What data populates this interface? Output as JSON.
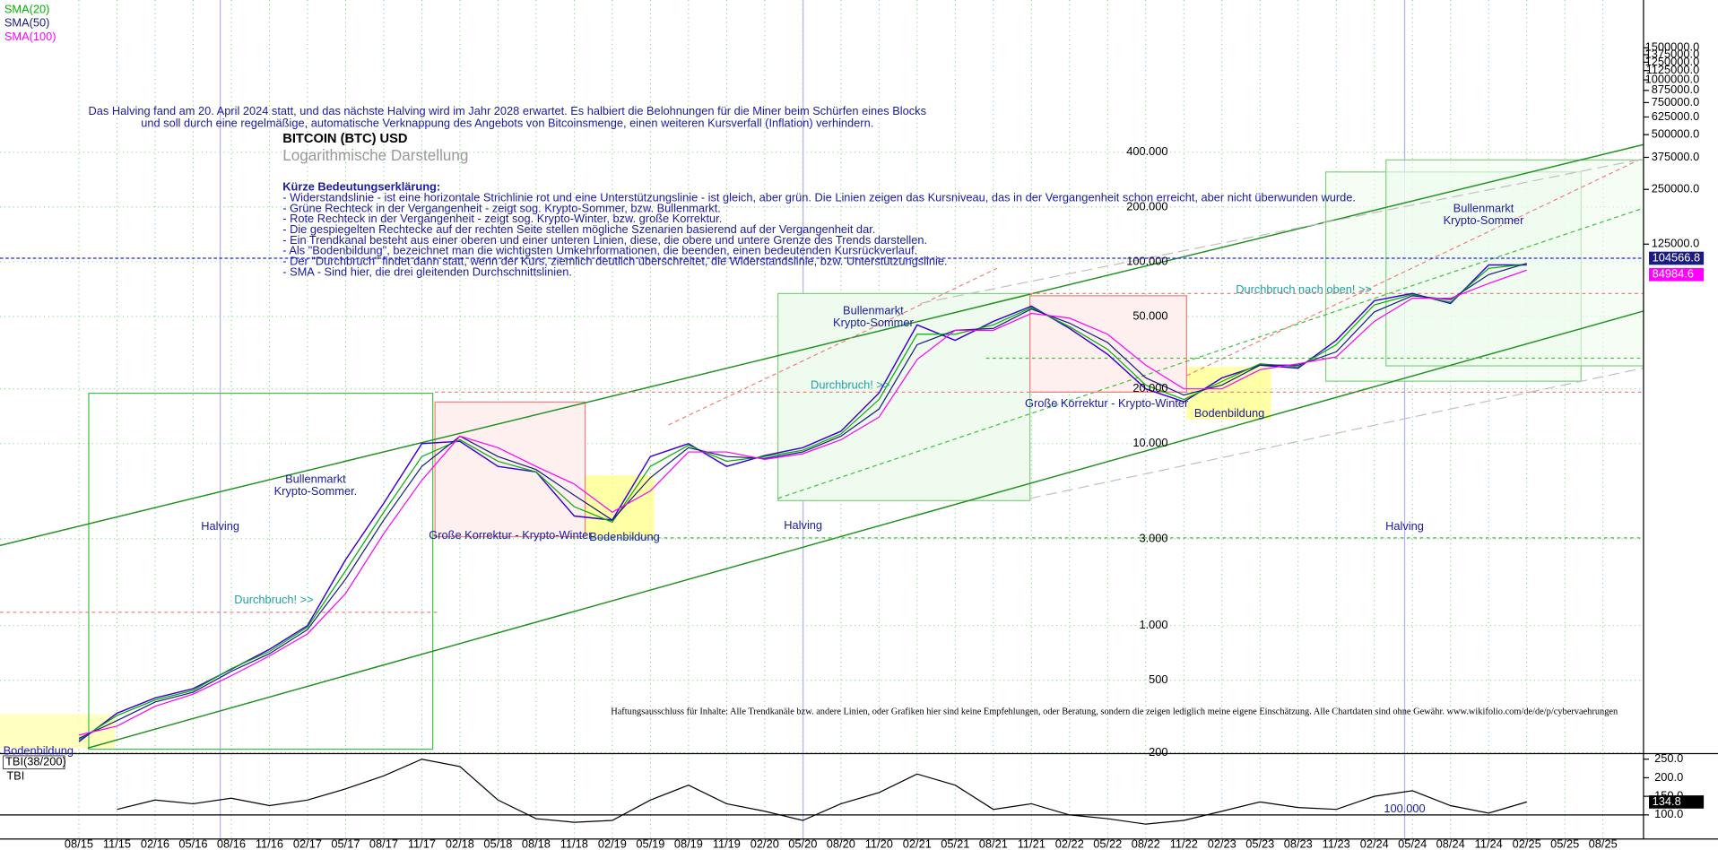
{
  "chart_data": [
    {
      "type": "line",
      "title": "BITCOIN (BTC) USD",
      "subtitle": "Logarithmische Darstellung",
      "log_scale": true,
      "grid": true,
      "x": [
        "08/15",
        "11/15",
        "02/16",
        "05/16",
        "08/16",
        "11/16",
        "02/17",
        "05/17",
        "08/17",
        "11/17",
        "02/18",
        "05/18",
        "08/18",
        "11/18",
        "02/19",
        "05/19",
        "08/19",
        "11/19",
        "02/20",
        "05/20",
        "08/20",
        "11/20",
        "02/21",
        "05/21",
        "08/21",
        "11/21",
        "02/22",
        "05/22",
        "08/22",
        "11/22",
        "02/23",
        "05/23",
        "08/23",
        "11/23",
        "02/24",
        "05/24",
        "08/24",
        "11/24",
        "02/25",
        "05/25",
        "08/25"
      ],
      "ylim": [
        195,
        2600000
      ],
      "yticks": [
        {
          "value": 200,
          "label": "200"
        },
        {
          "value": 500,
          "label": "500"
        },
        {
          "value": 1000,
          "label": "1.000"
        },
        {
          "value": 3000,
          "label": "3.000"
        },
        {
          "value": 10000,
          "label": "10.000"
        },
        {
          "value": 20000,
          "label": "20.000"
        },
        {
          "value": 50000,
          "label": "50.000"
        },
        {
          "value": 100000,
          "label": "100.000"
        },
        {
          "value": 200000,
          "label": "200.000"
        },
        {
          "value": 400000,
          "label": "400.000"
        }
      ],
      "y2lim": [
        195,
        2600000
      ],
      "y2ticks": [
        {
          "value": 125000,
          "label": "125000.0"
        },
        {
          "value": 250000,
          "label": "250000.0"
        },
        {
          "value": 375000,
          "label": "375000.0"
        },
        {
          "value": 500000,
          "label": "500000.0"
        },
        {
          "value": 625000,
          "label": "625000.0"
        },
        {
          "value": 750000,
          "label": "750000.0"
        },
        {
          "value": 875000,
          "label": "875000.0"
        },
        {
          "value": 1000000,
          "label": "1000000.0"
        },
        {
          "value": 1125000,
          "label": "1125000.0"
        },
        {
          "value": 1250000,
          "label": "1250000.0"
        },
        {
          "value": 1375000,
          "label": "1375000.0"
        },
        {
          "value": 1500000,
          "label": "1500000.0"
        }
      ],
      "series": [
        {
          "color": "#3a00d8",
          "values": [
            230,
            330,
            400,
            450,
            575,
            740,
            1000,
            2300,
            4700,
            10000,
            10300,
            7500,
            7000,
            4000,
            3800,
            8500,
            10000,
            7500,
            8600,
            9500,
            11700,
            19000,
            45000,
            37000,
            47000,
            57000,
            43000,
            31000,
            20000,
            17000,
            23000,
            27000,
            26000,
            37000,
            61000,
            67000,
            59000,
            96000,
            96000,
            null,
            null
          ]
        },
        {
          "name": "SMA(20)",
          "color": "#00b000",
          "values": [
            235,
            320,
            390,
            440,
            580,
            720,
            980,
            2000,
            4200,
            8500,
            10500,
            8000,
            7000,
            4500,
            3700,
            7500,
            9800,
            8000,
            8500,
            9200,
            11300,
            17500,
            40000,
            40000,
            45000,
            56000,
            44000,
            33000,
            21000,
            17500,
            22000,
            27500,
            26500,
            35000,
            58000,
            66000,
            60000,
            92000,
            97000,
            null,
            null
          ]
        },
        {
          "name": "SMA(50)",
          "color": "#1a1a80",
          "values": [
            240,
            300,
            380,
            430,
            560,
            700,
            950,
            1800,
            3800,
            7500,
            11000,
            8500,
            7200,
            5200,
            3800,
            6500,
            9500,
            8500,
            8300,
            9000,
            11000,
            15500,
            35000,
            42000,
            43000,
            55000,
            46000,
            36000,
            23000,
            18500,
            21000,
            27000,
            27000,
            32000,
            53000,
            65000,
            62000,
            85000,
            98000,
            null,
            null
          ]
        },
        {
          "name": "SMA(100)",
          "color": "#ff00ff",
          "values": [
            250,
            280,
            360,
            420,
            530,
            680,
            900,
            1500,
            3200,
            6300,
            11000,
            9500,
            7500,
            6000,
            4200,
            5500,
            9000,
            9000,
            8200,
            8800,
            10500,
            14000,
            29000,
            42000,
            42000,
            52000,
            49000,
            40000,
            27000,
            20000,
            20000,
            25500,
            27500,
            30000,
            47000,
            63000,
            63000,
            76000,
            90000,
            null,
            null
          ]
        }
      ],
      "last_price": 104566.8,
      "last_sma": 84984.6
    },
    {
      "type": "line",
      "title": "TBI(38/200)",
      "ylim": [
        38,
        259
      ],
      "yticks": [
        {
          "value": 250,
          "label": "250.0"
        },
        {
          "value": 200,
          "label": "200.0"
        },
        {
          "value": 150,
          "label": "150.0"
        },
        {
          "value": 100,
          "label": "100.0"
        }
      ],
      "series": [
        {
          "name": "TBI",
          "color": "#000000",
          "values": [
            null,
            115,
            140,
            130,
            145,
            125,
            140,
            170,
            205,
            250,
            230,
            140,
            90,
            80,
            85,
            140,
            180,
            130,
            110,
            85,
            130,
            160,
            210,
            180,
            115,
            130,
            100,
            90,
            75,
            85,
            110,
            135,
            120,
            115,
            150,
            165,
            125,
            105,
            135,
            null,
            null
          ]
        }
      ],
      "last_value": 134.8,
      "panel_label": "100.000"
    }
  ],
  "annotations": {
    "halving_note": [
      "Das Halving fand am 20. April 2024 statt, und das nächste Halving wird im Jahr 2028 erwartet. Es halbiert die Belohnungen für die Miner beim Schürfen eines Blocks",
      "und soll durch eine regelmäßige, automatische Verknappung des Angebots von Bitcoinsmenge, einen weiteren Kursverfall (Inflation) verhindern."
    ],
    "legend_heading": "Kürze Bedeutungserklärung:",
    "legend_lines": [
      "- Widerstandslinie - ist eine horizontale Strichlinie rot und eine Unterstützungslinie - ist gleich, aber grün. Die Linien zeigen das Kursniveau, das in der Vergangenheit schon erreicht, aber nicht überwunden wurde.",
      "- Grüne Rechteck in der Vergangenheit - zeigt sog. Krypto-Sommer, bzw. Bullenmarkt.",
      "- Rote Rechteck in der Vergangenheit - zeigt sog. Krypto-Winter, bzw. große Korrektur.",
      "- Die gespiegelten Rechtecke auf der rechten Seite stellen mögliche Szenarien basierend auf der Vergangenheit dar.",
      "- Ein Trendkanal besteht aus einer oberen und einer unteren Linien, diese, die obere und untere Grenze des Trends darstellen.",
      "- Als \"Bodenbildung\", bezeichnet man die wichtigsten Umkehrformationen, die beenden, einen bedeutenden Kursrückverlauf.",
      "- Der \"Durchbruch\" findet dann statt, wenn der Kurs, ziemlich deutlich überschreitet, die Widerstandslinie, bzw. Unterstützungslinie.",
      "- SMA - Sind hier, die drei gleitenden Durchschnittslinien."
    ],
    "labels": [
      "Halving",
      "Halving",
      "Halving",
      "Bullenmarkt",
      "Krypto-Sommer.",
      "Bullenmarkt",
      "Krypto-Sommer",
      "Bullenmarkt",
      "Krypto-Sommer",
      "Durchbruch! >>",
      "Durchbruch! >>",
      "Durchbruch nach oben! >>",
      "Große Korrektur - Krypto-Winter",
      "Große Korrektur - Krypto-Winter",
      "Bodenbildung",
      "Bodenbildung",
      "Bodenbildung"
    ],
    "disclaimer": "Haftungsausschluss für Inhalte: Alle Trendkanäle bzw. andere Linien, oder Grafiken hier sind keine Empfehlungen, oder Beratung, sondern die zeigen lediglich meine eigene Einschätzung. Alle Chartdaten sind ohne Gewähr.  www.wikifolio.com/de/de/p/cybervaehrungen"
  }
}
